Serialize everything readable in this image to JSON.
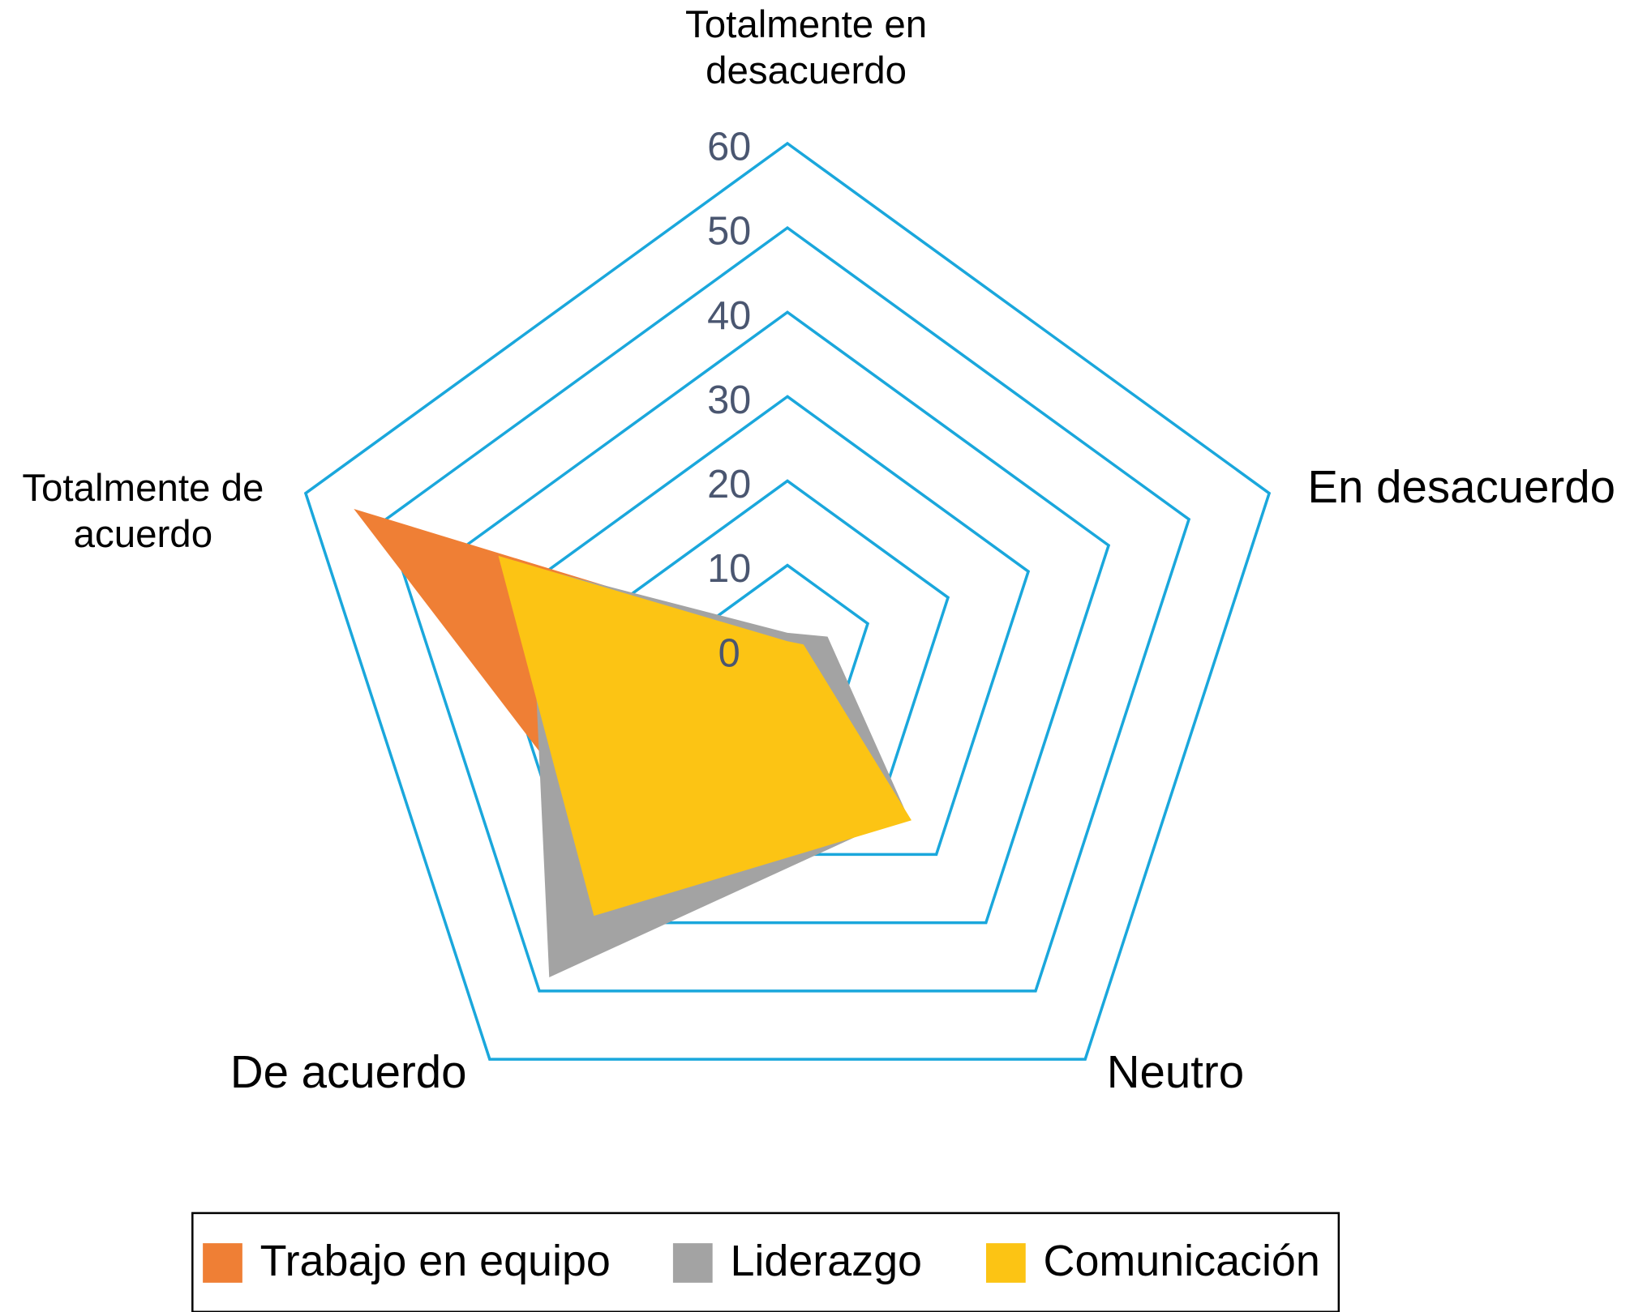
{
  "chart_data": {
    "type": "radar",
    "categories": [
      "Totalmente en desacuerdo",
      "En desacuerdo",
      "Neutro",
      "De acuerdo",
      "Totalmente de acuerdo"
    ],
    "series": [
      {
        "name": "Trabajo en equipo",
        "color": "#ef7f35",
        "values": [
          1,
          2,
          20,
          32,
          54
        ]
      },
      {
        "name": "Liderazgo",
        "color": "#a3a3a3",
        "values": [
          2,
          5,
          24,
          48,
          32
        ]
      },
      {
        "name": "Comunicación",
        "color": "#fcc414",
        "values": [
          1,
          2,
          25,
          39,
          36
        ]
      }
    ],
    "rlim": [
      0,
      60
    ],
    "rticks": [
      0,
      10,
      20,
      30,
      40,
      50,
      60
    ],
    "grid": true,
    "grid_color": "#1aa7dc",
    "legend": "bottom"
  }
}
